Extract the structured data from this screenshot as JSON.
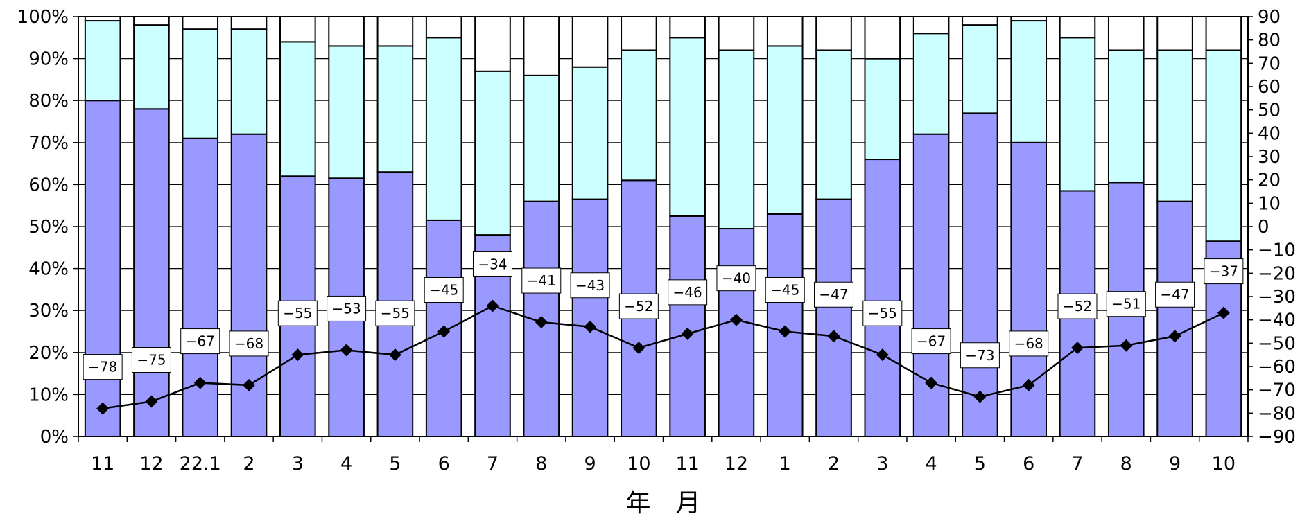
{
  "chart_data": {
    "type": "bar",
    "stacked": true,
    "title": "",
    "xlabel": "年　月",
    "ylabel": "",
    "ylim": [
      0,
      100
    ],
    "y2lim": [
      -90,
      90
    ],
    "yticks": [
      "0%",
      "10%",
      "20%",
      "30%",
      "40%",
      "50%",
      "60%",
      "70%",
      "80%",
      "90%",
      "100%"
    ],
    "y2ticks": [
      "−90",
      "−80",
      "−70",
      "−60",
      "−50",
      "−40",
      "−30",
      "−20",
      "−10",
      "0",
      "10",
      "20",
      "30",
      "40",
      "50",
      "60",
      "70",
      "80",
      "90"
    ],
    "grid": true,
    "legend": "none",
    "categories": [
      "11",
      "12",
      "22.1",
      "2",
      "3",
      "4",
      "5",
      "6",
      "7",
      "8",
      "9",
      "10",
      "11",
      "12",
      "1",
      "2",
      "3",
      "4",
      "5",
      "6",
      "7",
      "8",
      "9",
      "10"
    ],
    "series": [
      {
        "color": "#9999ff",
        "values": [
          80,
          78,
          71,
          72,
          62,
          61.5,
          63,
          51.5,
          48,
          56,
          56.5,
          61,
          52.5,
          49.5,
          53,
          56.5,
          66,
          72,
          77,
          70,
          58.5,
          60.5,
          56,
          46.5
        ]
      },
      {
        "color": "#ccffff",
        "values": [
          19,
          20,
          26,
          25,
          32,
          31.5,
          30,
          43.5,
          39,
          30,
          31.5,
          31,
          42.5,
          42.5,
          40,
          35.5,
          24,
          24,
          21,
          29,
          36.5,
          31.5,
          36,
          45.5
        ]
      },
      {
        "color": "#ffffff",
        "values": [
          1,
          2,
          3,
          3,
          6,
          7,
          7,
          5,
          13,
          14,
          12,
          8,
          5,
          8,
          7,
          8,
          10,
          4,
          2,
          1,
          5,
          8,
          8,
          8
        ]
      }
    ],
    "line": {
      "axis": "secondary",
      "color": "#000000",
      "marker": "diamond",
      "values": [
        -78,
        -75,
        -67,
        -68,
        -55,
        -53,
        -55,
        -45,
        -34,
        -41,
        -43,
        -52,
        -46,
        -40,
        -45,
        -47,
        -55,
        -67,
        -73,
        -68,
        -52,
        -51,
        -47,
        -37
      ],
      "labels": [
        "−78",
        "−75",
        "−67",
        "−68",
        "−55",
        "−53",
        "−55",
        "−45",
        "−34",
        "−41",
        "−43",
        "−52",
        "−46",
        "−40",
        "−45",
        "−47",
        "−55",
        "−67",
        "−73",
        "−68",
        "−52",
        "−51",
        "−47",
        "−37"
      ]
    }
  }
}
